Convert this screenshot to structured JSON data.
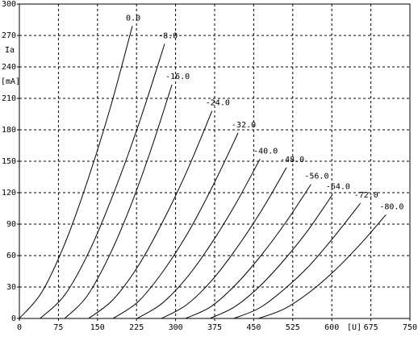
{
  "chart_data": {
    "type": "line",
    "ylabel": "Ia",
    "yunit": "[mA]",
    "xunit": "[U]",
    "xlim": [
      0,
      750
    ],
    "xticks": [
      0,
      75,
      150,
      225,
      300,
      375,
      450,
      525,
      600,
      675,
      750
    ],
    "ylim": [
      0,
      300
    ],
    "yticks": [
      0,
      30,
      60,
      90,
      120,
      150,
      180,
      210,
      240,
      270,
      300
    ],
    "grid": true,
    "grid_style": "dashed",
    "series": [
      {
        "name": "0.0",
        "color": "#000000",
        "x": [
          0,
          43,
          87,
          130,
          174,
          217
        ],
        "values": [
          0,
          25,
          71,
          130,
          200,
          279
        ]
      },
      {
        "name": "-8.0",
        "color": "#000000",
        "x": [
          40,
          88,
          136,
          183,
          231,
          279
        ],
        "values": [
          0,
          23,
          66,
          122,
          188,
          262
        ]
      },
      {
        "name": "-16.0",
        "color": "#000000",
        "x": [
          87,
          128,
          169,
          211,
          252,
          293
        ],
        "values": [
          0,
          20,
          56,
          104,
          160,
          223
        ]
      },
      {
        "name": "-24.0",
        "color": "#000000",
        "x": [
          133,
          180,
          228,
          275,
          323,
          370
        ],
        "values": [
          0,
          18,
          50,
          92,
          142,
          198
        ]
      },
      {
        "name": "-32.0",
        "color": "#000000",
        "x": [
          180,
          228,
          276,
          324,
          372,
          420
        ],
        "values": [
          0,
          16,
          45,
          82,
          127,
          177
        ]
      },
      {
        "name": "-40.0",
        "color": "#000000",
        "x": [
          226,
          273,
          320,
          368,
          415,
          462
        ],
        "values": [
          0,
          14,
          38,
          71,
          109,
          152
        ]
      },
      {
        "name": "-48.0",
        "color": "#000000",
        "x": [
          273,
          321,
          369,
          417,
          465,
          513
        ],
        "values": [
          0,
          13,
          36,
          67,
          103,
          144
        ]
      },
      {
        "name": "-56.0",
        "color": "#000000",
        "x": [
          319,
          367,
          415,
          464,
          512,
          560
        ],
        "values": [
          0,
          11,
          32,
          60,
          92,
          128
        ]
      },
      {
        "name": "-64.0",
        "color": "#000000",
        "x": [
          366,
          413,
          460,
          507,
          554,
          601
        ],
        "values": [
          0,
          11,
          30,
          55,
          84,
          118
        ]
      },
      {
        "name": "-72.0",
        "color": "#000000",
        "x": [
          412,
          461,
          509,
          558,
          606,
          655
        ],
        "values": [
          0,
          10,
          28,
          51,
          79,
          110
        ]
      },
      {
        "name": "-80.0",
        "color": "#000000",
        "x": [
          459,
          508,
          557,
          606,
          655,
          704
        ],
        "values": [
          0,
          9,
          25,
          46,
          71,
          99
        ]
      }
    ]
  }
}
